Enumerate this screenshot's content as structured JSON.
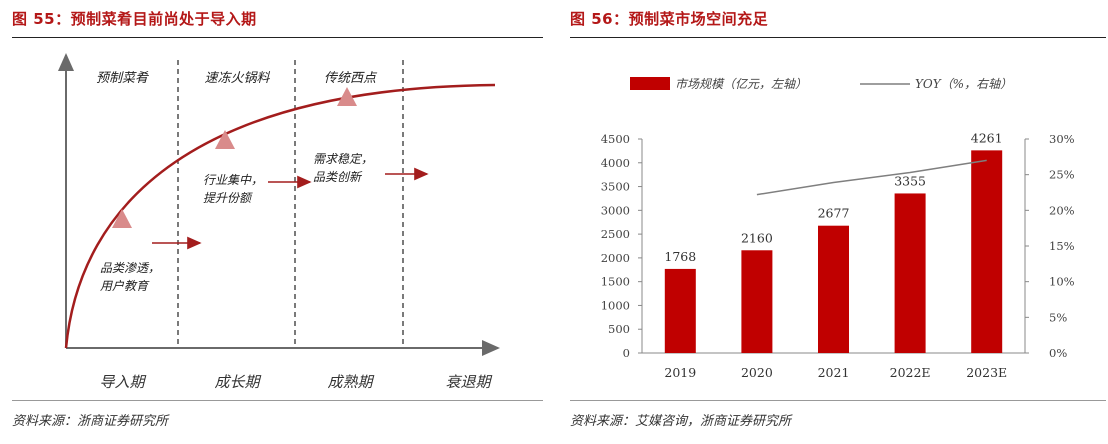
{
  "left": {
    "figure_title": "图 55：预制菜肴目前尚处于导入期",
    "source": "资料来源：浙商证券研究所",
    "chart_data": {
      "type": "diagram",
      "stages": [
        "导入期",
        "成长期",
        "成熟期",
        "衰退期"
      ],
      "stage_headers": [
        "预制菜肴",
        "速冻火锅料",
        "传统西点"
      ],
      "annotations": [
        [
          "品类渗透，",
          "用户教育"
        ],
        [
          "行业集中，",
          "提升份额"
        ],
        [
          "需求稳定，",
          "品类创新"
        ]
      ],
      "colors": {
        "curve": "#a31d1d",
        "marker": "#d98b8b",
        "axis": "#6a6a6a"
      }
    }
  },
  "right": {
    "figure_title": "图 56：预制菜市场空间充足",
    "source": "资料来源：艾媒咨询，浙商证券研究所",
    "chart_data": {
      "type": "bar",
      "categories": [
        "2019",
        "2020",
        "2021",
        "2022E",
        "2023E"
      ],
      "series": [
        {
          "name": "市场规模（亿元，左轴）",
          "values": [
            1768,
            2160,
            2677,
            3355,
            4261
          ],
          "color": "#c00000"
        },
        {
          "name": "YOY（%，右轴）",
          "type": "line",
          "values": [
            null,
            22.2,
            23.9,
            25.3,
            27.0
          ],
          "color": "#7f7f7f"
        }
      ],
      "data_labels": [
        "1768",
        "2160",
        "2677",
        "3355",
        "4261"
      ],
      "ylim_left": [
        0,
        4500
      ],
      "yticks_left": [
        "0",
        "500",
        "1000",
        "1500",
        "2000",
        "2500",
        "3000",
        "3500",
        "4000",
        "4500"
      ],
      "ylim_right": [
        0,
        30
      ],
      "yticks_right": [
        "0%",
        "5%",
        "10%",
        "15%",
        "20%",
        "25%",
        "30%"
      ],
      "legend_position": "top",
      "grid": false
    }
  }
}
